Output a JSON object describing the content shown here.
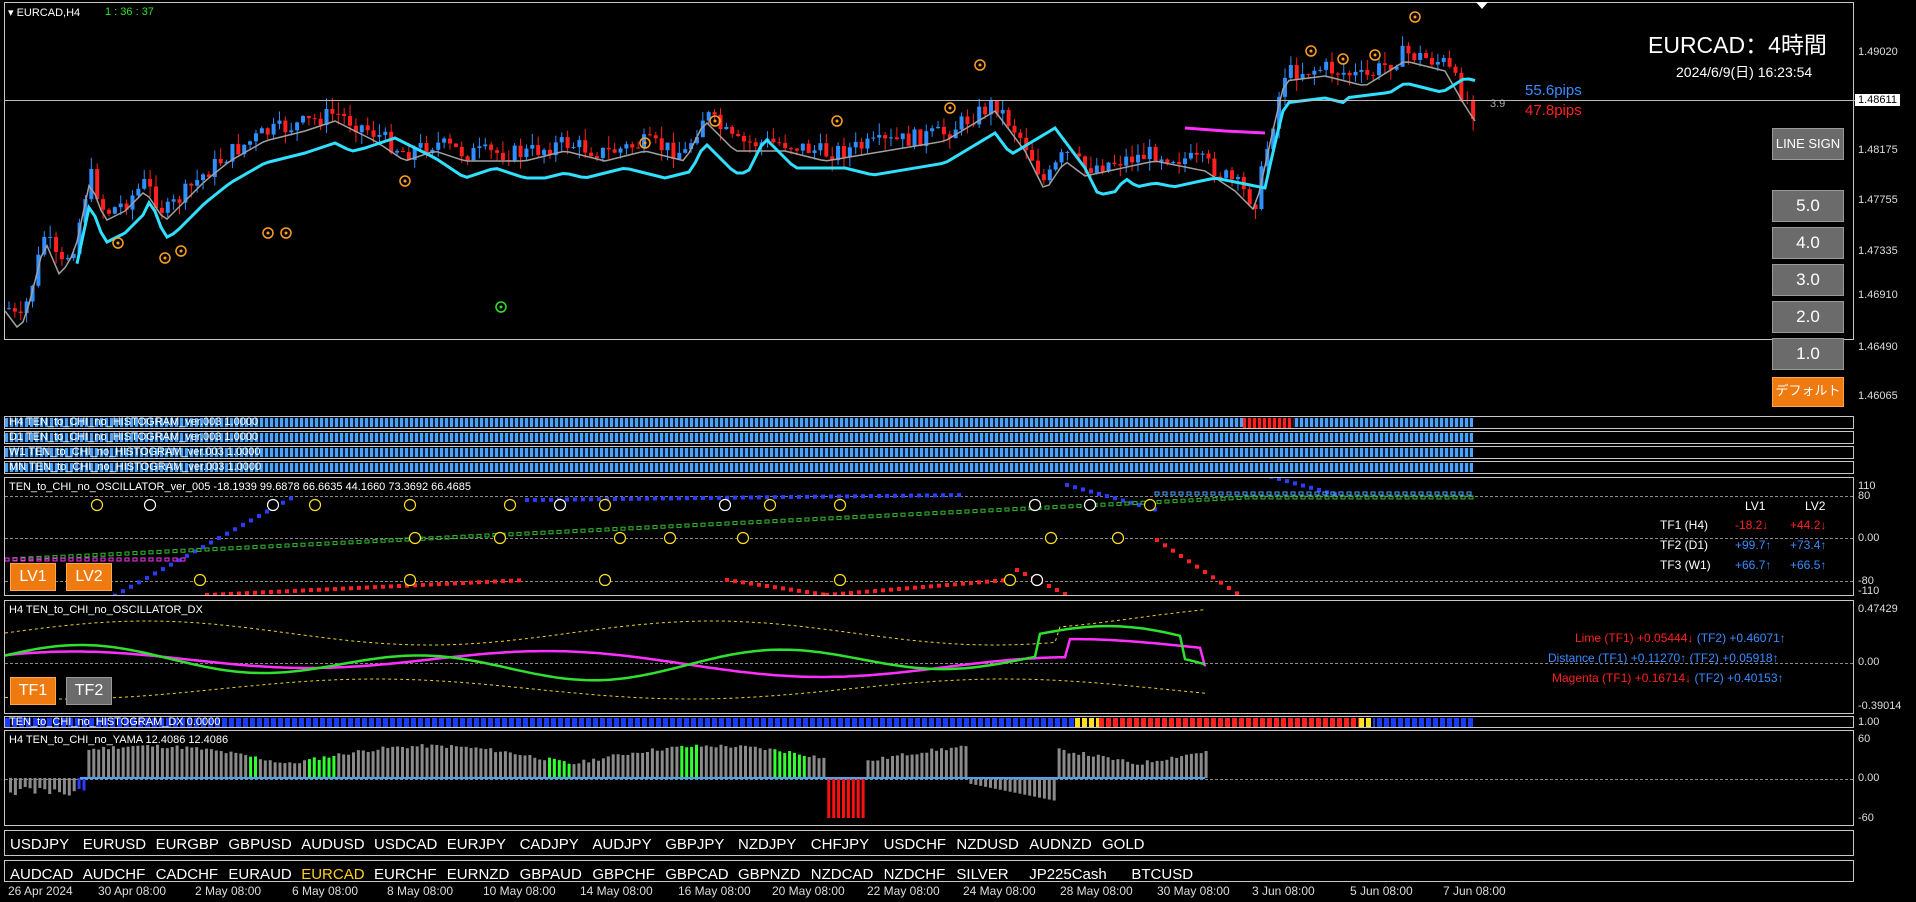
{
  "chart": {
    "symbol_label": "EURCAD,H4",
    "timer": "1 : 36 : 37",
    "title": "EURCAD：4時間",
    "datetime": "2024/6/9(日) 16:23:54",
    "spread": "3.9",
    "pips_up": "55.6pips",
    "pips_down": "47.8pips",
    "price_current": "1.48611",
    "price_axis": [
      "1.49020",
      "1.48175",
      "1.47755",
      "1.47335",
      "1.46910",
      "1.46490",
      "1.46065"
    ],
    "colors": {
      "bull": "#2f8fff",
      "bear": "#ff2020",
      "ma_fast": "#30e0ff",
      "ma_slow": "#a0a0a0",
      "ma_magenta": "#ff30ff",
      "marker": "#ffa020"
    }
  },
  "side_buttons": {
    "line_sign": "LINE SIGN",
    "levels": [
      "5.0",
      "4.0",
      "3.0",
      "2.0",
      "1.0"
    ],
    "default": "デフォルト"
  },
  "histograms": [
    "H4 TEN_to_CHI_no_HISTOGRAM_ver.003 1.0000",
    "D1 TEN_to_CHI_no_HISTOGRAM_ver.003 1.0000",
    "W1 TEN_to_CHI_no_HISTOGRAM_ver.003 1.0000",
    "MN TEN_to_CHI_no_HISTOGRAM_ver.003 1.0000"
  ],
  "oscillator": {
    "label": "TEN_to_CHI_no_OSCILLATOR_ver_005 -18.1939 99.6878 66.6635 44.1660 73.3692 66.4685",
    "axis": [
      "110",
      "80",
      "0.00",
      "-80",
      "-110"
    ],
    "lv1": "LV1",
    "lv2": "LV2",
    "header_lv1": "LV1",
    "header_lv2": "LV2",
    "rows": [
      {
        "name": "TF1 (H4)",
        "v1": "-18.2↓",
        "v2": "+44.2↓"
      },
      {
        "name": "TF2 (D1)",
        "v1": "+99.7↑",
        "v2": "+73.4↑"
      },
      {
        "name": "TF3 (W1)",
        "v1": "+66.7↑",
        "v2": "+66.5↑"
      }
    ]
  },
  "dx": {
    "label": "H4 TEN_to_CHI_no_OSCILLATOR_DX",
    "axis": [
      "0.47429",
      "0.00",
      "-0.39014"
    ],
    "tf1": "TF1",
    "tf2": "TF2",
    "lines": [
      {
        "name": "Lime (TF1)",
        "v1": "+0.05444↓",
        "tf2": "(TF2)",
        "v2": "+0.46071↑"
      },
      {
        "name": "Distance (TF1)",
        "v1": "+0.11270↑",
        "tf2": "(TF2)",
        "v2": "+0.05918↑"
      },
      {
        "name": "Magenta (TF1)",
        "v1": "+0.16714↓",
        "tf2": "(TF2)",
        "v2": "+0.40153↑"
      }
    ]
  },
  "hist_dx": {
    "label": "TEN_to_CHI_no_HISTOGRAM_DX 0.0000",
    "axis": "1.00"
  },
  "yama": {
    "label": "H4  TEN_to_CHI_no_YAMA  12.4086 12.4086",
    "axis": [
      "60",
      "0.00",
      "-60"
    ]
  },
  "symbols_row1": [
    "USDJPY",
    "EURUSD",
    "EURGBP",
    "GBPUSD",
    "AUDUSD",
    "USDCAD",
    "EURJPY",
    "CADJPY",
    "AUDJPY",
    "GBPJPY",
    "NZDJPY",
    "CHFJPY",
    "USDCHF",
    "NZDUSD",
    "AUDNZD",
    "GOLD"
  ],
  "symbols_row2": [
    "AUDCAD",
    "AUDCHF",
    "CADCHF",
    "EURAUD",
    "EURCAD",
    "EURCHF",
    "EURNZD",
    "GBPAUD",
    "GBPCHF",
    "GBPCAD",
    "GBPNZD",
    "NZDCAD",
    "NZDCHF",
    "SILVER",
    "JP225Cash",
    "BTCUSD"
  ],
  "active_symbol": "EURCAD",
  "xaxis": [
    "26 Apr 2024",
    "30 Apr 08:00",
    "2 May 08:00",
    "6 May 08:00",
    "8 May 08:00",
    "10 May 08:00",
    "14 May 08:00",
    "16 May 08:00",
    "20 May 08:00",
    "22 May 08:00",
    "24 May 08:00",
    "28 May 08:00",
    "30 May 08:00",
    "3 Jun 08:00",
    "5 Jun 08:00",
    "7 Jun 08:00"
  ]
}
